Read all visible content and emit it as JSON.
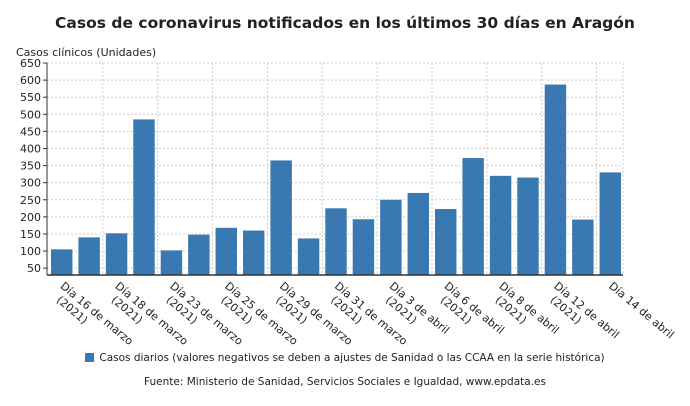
{
  "chart_data": {
    "type": "bar",
    "title": "Casos de coronavirus notificados en los últimos 30 días en Aragón",
    "ylabel": "Casos clínicos (Unidades)",
    "xlabel": "",
    "ylim": [
      30,
      650
    ],
    "yticks": [
      50,
      100,
      150,
      200,
      250,
      300,
      350,
      400,
      450,
      500,
      550,
      600,
      650
    ],
    "grid": true,
    "color": "#3a78b2",
    "tick_labels": [
      [
        "Día 16 de marzo",
        "(2021)"
      ],
      [
        "Día 18 de marzo",
        "(2021)"
      ],
      [
        "Día 23 de marzo",
        "(2021)"
      ],
      [
        "Día 25 de marzo",
        "(2021)"
      ],
      [
        "Día 29 de marzo",
        "(2021)"
      ],
      [
        "Día 31 de marzo",
        "(2021)"
      ],
      [
        "Día 3 de abril",
        "(2021)"
      ],
      [
        "Día 6 de abril",
        "(2021)"
      ],
      [
        "Día 8 de abril",
        "(2021)"
      ],
      [
        "Día 12 de abril",
        "(2021)"
      ],
      [
        "Día 14 de abril",
        ""
      ]
    ],
    "series": [
      {
        "name": "Casos diarios (valores negativos se deben a ajustes de Sanidad o las CCAA en la serie histórica)",
        "values": [
          105,
          140,
          152,
          485,
          102,
          148,
          168,
          160,
          365,
          137,
          225,
          193,
          250,
          270,
          223,
          372,
          320,
          315,
          587,
          192,
          330
        ]
      }
    ],
    "legend_position": "bottom"
  },
  "source": "Fuente: Ministerio de Sanidad, Servicios Sociales e Igualdad, www.epdata.es"
}
